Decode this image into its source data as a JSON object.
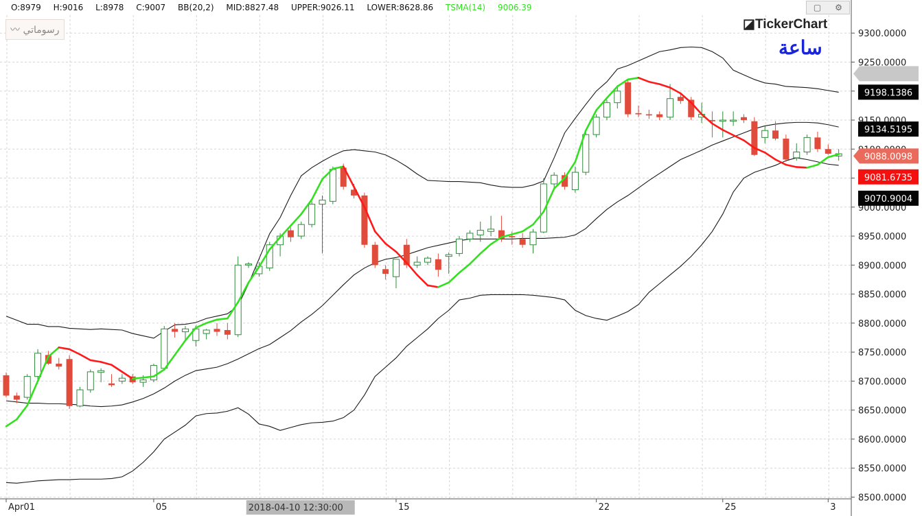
{
  "header": {
    "ohlc": [
      "O:8979",
      "H:9016",
      "L:8978",
      "C:9007"
    ],
    "bb": "BB(20,2)",
    "mid": "MID:8827.48",
    "upper": "UPPER:9026.11",
    "lower": "LOWER:8628.86",
    "tsma_label": "TSMA(14)",
    "tsma_value": "9006.39",
    "drawings_label": "رسوماتي",
    "logo": "TickerChart",
    "period": "ساعة"
  },
  "colors": {
    "up": "#2e8b3a",
    "down": "#e04b3b",
    "tsma_up": "#32e01f",
    "tsma_down": "#ff1a1a",
    "bands": "#1a1a1a",
    "grid": "#d6d6d6"
  },
  "chart_data": {
    "type": "candlestick",
    "ylim": [
      8500,
      9330
    ],
    "yticks": [
      9300,
      9250,
      9200,
      9150,
      9100,
      9050,
      9000,
      8950,
      8900,
      8850,
      8800,
      8750,
      8700,
      8650,
      8600,
      8550,
      8500
    ],
    "ytick_labels": [
      "9300.0000",
      "9250.0000",
      "9200.0000",
      "9150.0000",
      "9100.0000",
      "9050.0000",
      "9000.0000",
      "8950.0000",
      "8900.0000",
      "8850.0000",
      "8800.0000",
      "8750.0000",
      "8700.0000",
      "8650.0000",
      "8600.0000",
      "8550.0000",
      "8500.0000"
    ],
    "xticks": [
      {
        "bar": 0,
        "label": "Apr01"
      },
      {
        "bar": 14,
        "label": "05"
      },
      {
        "bar": 37,
        "label": "15"
      },
      {
        "bar": 56,
        "label": "22"
      },
      {
        "bar": 68,
        "label": "25"
      },
      {
        "bar": 78,
        "label": "3"
      }
    ],
    "crosshair": {
      "bar": 25,
      "label": "2018-04-10 12:30:00"
    },
    "price_tags": [
      {
        "value": 9230,
        "label": "",
        "style": "gray"
      },
      {
        "value": 9198.1386,
        "label": "9198.1386",
        "style": "black"
      },
      {
        "value": 9134.5195,
        "label": "9134.5195",
        "style": "black"
      },
      {
        "value": 9088.0098,
        "label": "9088.0098",
        "style": "coral"
      },
      {
        "value": 9081.6735,
        "label": "9081.6735",
        "style": "red"
      },
      {
        "value": 9070.9004,
        "label": "9070.9004",
        "style": "black"
      }
    ],
    "candles": [
      [
        8710,
        8715,
        8672,
        8675
      ],
      [
        8675,
        8680,
        8662,
        8668
      ],
      [
        8672,
        8712,
        8668,
        8708
      ],
      [
        8708,
        8755,
        8702,
        8748
      ],
      [
        8745,
        8752,
        8728,
        8730
      ],
      [
        8730,
        8740,
        8720,
        8725
      ],
      [
        8738,
        8745,
        8652,
        8657
      ],
      [
        8657,
        8690,
        8655,
        8685
      ],
      [
        8685,
        8720,
        8680,
        8716
      ],
      [
        8715,
        8722,
        8698,
        8718
      ],
      [
        8696,
        8712,
        8690,
        8693
      ],
      [
        8700,
        8712,
        8695,
        8705
      ],
      [
        8708,
        8712,
        8695,
        8698
      ],
      [
        8698,
        8710,
        8690,
        8702
      ],
      [
        8702,
        8730,
        8698,
        8727
      ],
      [
        8722,
        8795,
        8718,
        8790
      ],
      [
        8790,
        8800,
        8775,
        8785
      ],
      [
        8785,
        8795,
        8772,
        8790
      ],
      [
        8770,
        8796,
        8760,
        8790
      ],
      [
        8782,
        8790,
        8772,
        8788
      ],
      [
        8790,
        8800,
        8778,
        8785
      ],
      [
        8788,
        8800,
        8772,
        8780
      ],
      [
        8780,
        8915,
        8776,
        8900
      ],
      [
        8900,
        8905,
        8895,
        8902
      ],
      [
        8885,
        8905,
        8880,
        8898
      ],
      [
        8895,
        8940,
        8890,
        8935
      ],
      [
        8935,
        8955,
        8915,
        8950
      ],
      [
        8960,
        8965,
        8940,
        8948
      ],
      [
        8950,
        8975,
        8945,
        8970
      ],
      [
        8970,
        9010,
        8965,
        9005
      ],
      [
        9005,
        9020,
        8920,
        9012
      ],
      [
        9010,
        9070,
        9005,
        9065
      ],
      [
        9068,
        9075,
        9030,
        9035
      ],
      [
        9030,
        9040,
        9015,
        9020
      ],
      [
        9020,
        9025,
        8930,
        8935
      ],
      [
        8935,
        8940,
        8895,
        8900
      ],
      [
        8893,
        8900,
        8875,
        8885
      ],
      [
        8880,
        8905,
        8860,
        8910
      ],
      [
        8935,
        8945,
        8895,
        8900
      ],
      [
        8900,
        8915,
        8895,
        8905
      ],
      [
        8905,
        8915,
        8900,
        8912
      ],
      [
        8910,
        8920,
        8880,
        8892
      ],
      [
        8915,
        8922,
        8885,
        8918
      ],
      [
        8920,
        8950,
        8915,
        8945
      ],
      [
        8945,
        8960,
        8940,
        8955
      ],
      [
        8952,
        8975,
        8940,
        8960
      ],
      [
        8958,
        8985,
        8950,
        8962
      ],
      [
        8960,
        8985,
        8940,
        8945
      ],
      [
        8950,
        8958,
        8935,
        8948
      ],
      [
        8945,
        8955,
        8930,
        8935
      ],
      [
        8935,
        8962,
        8920,
        8957
      ],
      [
        8957,
        9050,
        8955,
        9040
      ],
      [
        9040,
        9060,
        9030,
        9055
      ],
      [
        9055,
        9060,
        9030,
        9035
      ],
      [
        9030,
        9070,
        9025,
        9060
      ],
      [
        9060,
        9130,
        9055,
        9125
      ],
      [
        9125,
        9160,
        9120,
        9155
      ],
      [
        9155,
        9185,
        9150,
        9180
      ],
      [
        9180,
        9210,
        9170,
        9200
      ],
      [
        9215,
        9218,
        9155,
        9160
      ],
      [
        9162,
        9175,
        9155,
        9160
      ],
      [
        9160,
        9168,
        9152,
        9158
      ],
      [
        9160,
        9165,
        9150,
        9155
      ],
      [
        9155,
        9212,
        9150,
        9187
      ],
      [
        9190,
        9195,
        9178,
        9183
      ],
      [
        9185,
        9190,
        9150,
        9155
      ],
      [
        9155,
        9180,
        9145,
        9160
      ],
      [
        9150,
        9165,
        9120,
        9148
      ],
      [
        9148,
        9165,
        9120,
        9150
      ],
      [
        9148,
        9165,
        9140,
        9150
      ],
      [
        9155,
        9160,
        9145,
        9150
      ],
      [
        9148,
        9155,
        9088,
        9090
      ],
      [
        9120,
        9140,
        9110,
        9132
      ],
      [
        9132,
        9148,
        9115,
        9118
      ],
      [
        9118,
        9125,
        9078,
        9082
      ],
      [
        9085,
        9110,
        9080,
        9095
      ],
      [
        9095,
        9125,
        9090,
        9120
      ],
      [
        9120,
        9130,
        9095,
        9100
      ],
      [
        9100,
        9108,
        9090,
        9092
      ],
      [
        9088,
        9100,
        9080,
        9092
      ]
    ],
    "tsma": [
      8622,
      8634,
      8658,
      8700,
      8742,
      8758,
      8755,
      8746,
      8736,
      8733,
      8728,
      8716,
      8704,
      8706,
      8708,
      8720,
      8745,
      8770,
      8792,
      8800,
      8806,
      8808,
      8836,
      8870,
      8897,
      8927,
      8948,
      8968,
      8988,
      9013,
      9048,
      9066,
      9070,
      9035,
      9000,
      8958,
      8937,
      8923,
      8904,
      8883,
      8865,
      8862,
      8870,
      8887,
      8902,
      8920,
      8936,
      8948,
      8953,
      8958,
      8970,
      8992,
      9032,
      9050,
      9078,
      9132,
      9167,
      9188,
      9208,
      9220,
      9223,
      9216,
      9212,
      9206,
      9196,
      9180,
      9160,
      9144,
      9133,
      9124,
      9115,
      9102,
      9094,
      9082,
      9073,
      9069,
      9068,
      9073,
      9086,
      9091
    ],
    "bb_upper": [
      8812,
      8805,
      8798,
      8798,
      8794,
      8794,
      8791,
      8790,
      8789,
      8790,
      8789,
      8788,
      8782,
      8778,
      8774,
      8786,
      8797,
      8798,
      8801,
      8808,
      8812,
      8816,
      8830,
      8868,
      8911,
      8954,
      8982,
      9020,
      9054,
      9068,
      9079,
      9089,
      9097,
      9099,
      9097,
      9095,
      9090,
      9081,
      9070,
      9057,
      9046,
      9045,
      9044,
      9044,
      9043,
      9042,
      9038,
      9035,
      9034,
      9034,
      9038,
      9045,
      9085,
      9128,
      9153,
      9177,
      9200,
      9216,
      9238,
      9244,
      9252,
      9260,
      9268,
      9271,
      9275,
      9276,
      9275,
      9268,
      9257,
      9236,
      9228,
      9220,
      9214,
      9212,
      9208,
      9207,
      9206,
      9204,
      9201,
      9198
    ],
    "bb_mid": [
      8666,
      8664,
      8662,
      8662,
      8661,
      8661,
      8660,
      8659,
      8657,
      8656,
      8657,
      8659,
      8664,
      8670,
      8678,
      8688,
      8700,
      8710,
      8718,
      8721,
      8724,
      8730,
      8738,
      8747,
      8756,
      8763,
      8775,
      8787,
      8802,
      8815,
      8830,
      8848,
      8866,
      8883,
      8895,
      8904,
      8910,
      8913,
      8918,
      8924,
      8930,
      8934,
      8938,
      8942,
      8945,
      8945,
      8945,
      8945,
      8945,
      8946,
      8946,
      8946,
      8947,
      8948,
      8952,
      8963,
      8980,
      8996,
      9009,
      9020,
      9033,
      9046,
      9058,
      9070,
      9082,
      9090,
      9098,
      9107,
      9114,
      9121,
      9128,
      9135,
      9140,
      9143,
      9145,
      9146,
      9146,
      9145,
      9142,
      9138
    ],
    "bb_lower": [
      8525,
      8524,
      8526,
      8528,
      8529,
      8530,
      8530,
      8531,
      8531,
      8531,
      8532,
      8535,
      8545,
      8560,
      8578,
      8600,
      8612,
      8624,
      8640,
      8644,
      8645,
      8648,
      8654,
      8643,
      8626,
      8622,
      8615,
      8620,
      8625,
      8628,
      8629,
      8631,
      8637,
      8650,
      8676,
      8708,
      8724,
      8740,
      8760,
      8775,
      8790,
      8808,
      8822,
      8840,
      8843,
      8848,
      8849,
      8849,
      8849,
      8849,
      8848,
      8846,
      8844,
      8840,
      8822,
      8813,
      8808,
      8805,
      8812,
      8820,
      8832,
      8853,
      8868,
      8883,
      8898,
      8915,
      8935,
      8958,
      8988,
      9026,
      9050,
      9060,
      9066,
      9072,
      9080,
      9085,
      9082,
      9078,
      9074,
      9072
    ]
  }
}
